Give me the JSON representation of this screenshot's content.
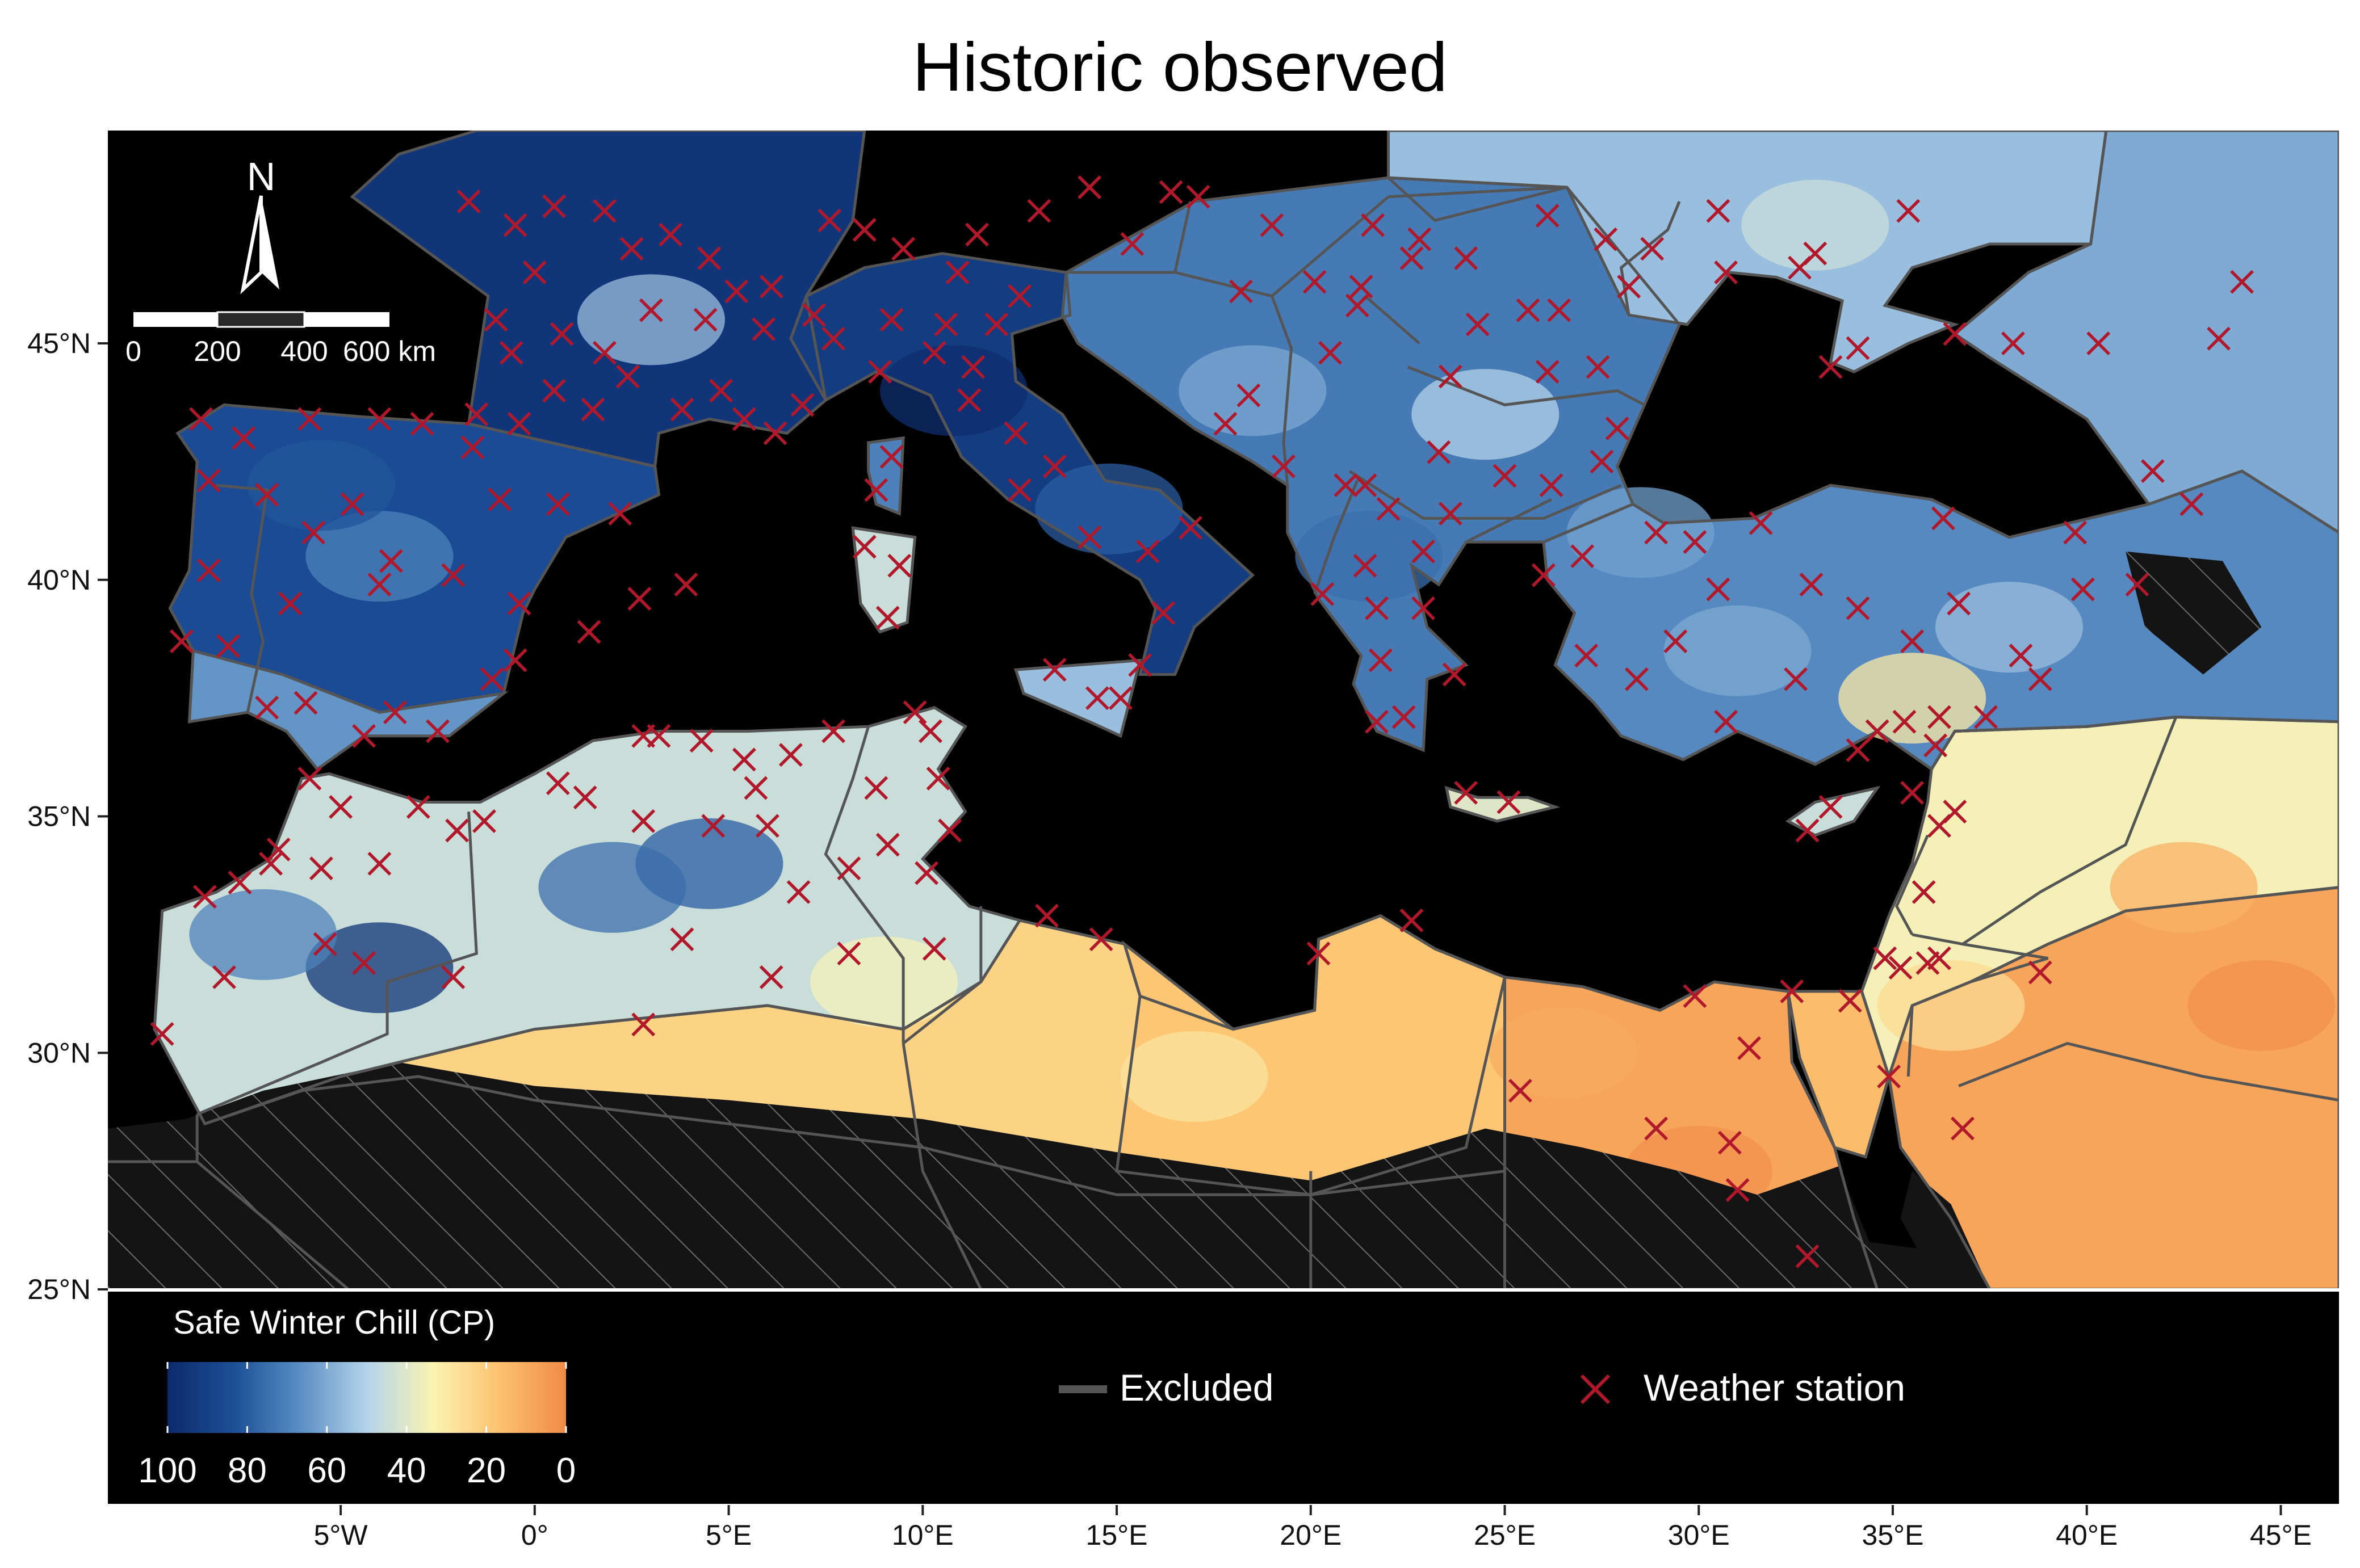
{
  "title": "Historic observed",
  "lat_axis": [
    {
      "value": 25,
      "label": "25°N"
    },
    {
      "value": 30,
      "label": "30°N"
    },
    {
      "value": 35,
      "label": "35°N"
    },
    {
      "value": 40,
      "label": "40°N"
    },
    {
      "value": 45,
      "label": "45°N"
    }
  ],
  "lon_axis": [
    {
      "value": -5,
      "label": "5°W"
    },
    {
      "value": 0,
      "label": "0°"
    },
    {
      "value": 5,
      "label": "5°E"
    },
    {
      "value": 10,
      "label": "10°E"
    },
    {
      "value": 15,
      "label": "15°E"
    },
    {
      "value": 20,
      "label": "20°E"
    },
    {
      "value": 25,
      "label": "25°E"
    },
    {
      "value": 30,
      "label": "30°E"
    },
    {
      "value": 35,
      "label": "35°E"
    },
    {
      "value": 40,
      "label": "40°E"
    },
    {
      "value": 45,
      "label": "45°E"
    }
  ],
  "extent": {
    "lon_min": -11,
    "lon_max": 46.5,
    "lat_min": 25,
    "lat_max": 49.5
  },
  "north_arrow": {
    "label": "N"
  },
  "scale_bar": {
    "labels": [
      "0",
      "200",
      "400",
      "600 km"
    ]
  },
  "legend": {
    "colorbar_title": "Safe Winter Chill (CP)",
    "colorbar_labels": [
      "100",
      "80",
      "60",
      "40",
      "20",
      "0"
    ],
    "excluded_label": "Excluded",
    "station_label": "Weather station"
  },
  "colors": {
    "sea": "#000000",
    "excluded": "#141414",
    "border": "#555555",
    "station": "#b2182b",
    "ramp": [
      "#0b2a6b",
      "#1d4f98",
      "#5a8ec3",
      "#b4d3ea",
      "#fbf3b2",
      "#fcc270",
      "#f08a48"
    ]
  },
  "chill_regions": [
    {
      "name": "france",
      "chill": 95
    },
    {
      "name": "iberia",
      "chill": 85
    },
    {
      "name": "iberia-south",
      "chill": 65
    },
    {
      "name": "italy",
      "chill": 92
    },
    {
      "name": "balkans",
      "chill": 72
    },
    {
      "name": "ukraine",
      "chill": 55
    },
    {
      "name": "anatolia",
      "chill": 68
    },
    {
      "name": "levant",
      "chill": 35
    },
    {
      "name": "arabia",
      "chill": 8
    },
    {
      "name": "maghreb-north",
      "chill": 45
    },
    {
      "name": "atlas",
      "chill": 88
    },
    {
      "name": "sahara",
      "chill": 22
    },
    {
      "name": "libya",
      "chill": 18
    },
    {
      "name": "egypt",
      "chill": 8
    },
    {
      "name": "sinai",
      "chill": 15
    }
  ],
  "stations": [
    [
      -1.7,
      48.0
    ],
    [
      -0.5,
      47.5
    ],
    [
      0.5,
      47.9
    ],
    [
      1.8,
      47.8
    ],
    [
      2.5,
      47.0
    ],
    [
      3.5,
      47.3
    ],
    [
      4.5,
      46.8
    ],
    [
      5.2,
      46.1
    ],
    [
      0.0,
      46.5
    ],
    [
      -1.0,
      45.5
    ],
    [
      0.7,
      45.2
    ],
    [
      1.8,
      44.8
    ],
    [
      3.0,
      45.7
    ],
    [
      4.4,
      45.5
    ],
    [
      5.9,
      45.3
    ],
    [
      -0.6,
      44.8
    ],
    [
      0.5,
      44.0
    ],
    [
      1.5,
      43.6
    ],
    [
      2.4,
      44.3
    ],
    [
      3.8,
      43.6
    ],
    [
      5.4,
      43.4
    ],
    [
      6.2,
      43.1
    ],
    [
      -1.5,
      43.5
    ],
    [
      -0.4,
      43.3
    ],
    [
      4.8,
      44.0
    ],
    [
      6.9,
      43.7
    ],
    [
      7.2,
      45.6
    ],
    [
      6.1,
      46.2
    ],
    [
      -8.6,
      43.4
    ],
    [
      -8.4,
      42.1
    ],
    [
      -7.5,
      43.0
    ],
    [
      -5.8,
      43.4
    ],
    [
      -4.0,
      43.4
    ],
    [
      -2.9,
      43.3
    ],
    [
      -1.6,
      42.8
    ],
    [
      -0.9,
      41.7
    ],
    [
      0.6,
      41.6
    ],
    [
      2.2,
      41.4
    ],
    [
      -3.7,
      40.4
    ],
    [
      -4.7,
      41.6
    ],
    [
      -5.7,
      41.0
    ],
    [
      -6.9,
      41.8
    ],
    [
      -8.4,
      40.2
    ],
    [
      -9.1,
      38.7
    ],
    [
      -7.9,
      38.6
    ],
    [
      -6.3,
      39.5
    ],
    [
      -4.0,
      39.9
    ],
    [
      -2.1,
      40.1
    ],
    [
      -0.4,
      39.5
    ],
    [
      -1.1,
      37.9
    ],
    [
      -3.6,
      37.2
    ],
    [
      -5.9,
      37.4
    ],
    [
      -6.9,
      37.3
    ],
    [
      -4.4,
      36.7
    ],
    [
      -2.5,
      36.8
    ],
    [
      -0.5,
      38.3
    ],
    [
      1.4,
      38.9
    ],
    [
      2.7,
      39.6
    ],
    [
      3.9,
      39.9
    ],
    [
      7.7,
      45.1
    ],
    [
      9.2,
      45.5
    ],
    [
      10.6,
      45.4
    ],
    [
      11.9,
      45.4
    ],
    [
      12.5,
      46.0
    ],
    [
      11.3,
      44.5
    ],
    [
      10.3,
      44.8
    ],
    [
      8.9,
      44.4
    ],
    [
      11.2,
      43.8
    ],
    [
      12.4,
      43.1
    ],
    [
      13.4,
      42.4
    ],
    [
      12.5,
      41.9
    ],
    [
      14.3,
      40.9
    ],
    [
      15.8,
      40.6
    ],
    [
      16.9,
      41.1
    ],
    [
      16.2,
      39.3
    ],
    [
      15.6,
      38.2
    ],
    [
      13.4,
      38.1
    ],
    [
      14.5,
      37.5
    ],
    [
      15.1,
      37.5
    ],
    [
      9.1,
      39.2
    ],
    [
      8.5,
      40.7
    ],
    [
      9.4,
      40.3
    ],
    [
      9.2,
      42.6
    ],
    [
      8.8,
      41.9
    ],
    [
      10.9,
      46.5
    ],
    [
      8.5,
      47.4
    ],
    [
      7.6,
      47.6
    ],
    [
      9.5,
      47.0
    ],
    [
      11.4,
      47.3
    ],
    [
      13.0,
      47.8
    ],
    [
      14.3,
      48.3
    ],
    [
      16.4,
      48.2
    ],
    [
      15.4,
      47.1
    ],
    [
      17.1,
      48.1
    ],
    [
      19.0,
      47.5
    ],
    [
      21.6,
      47.5
    ],
    [
      18.2,
      46.1
    ],
    [
      20.1,
      46.3
    ],
    [
      21.3,
      46.2
    ],
    [
      22.6,
      46.8
    ],
    [
      24.0,
      46.8
    ],
    [
      26.1,
      47.7
    ],
    [
      27.6,
      47.2
    ],
    [
      28.8,
      47.0
    ],
    [
      26.1,
      44.4
    ],
    [
      23.6,
      44.3
    ],
    [
      25.6,
      45.7
    ],
    [
      24.3,
      45.4
    ],
    [
      21.2,
      45.8
    ],
    [
      20.5,
      44.8
    ],
    [
      18.4,
      43.9
    ],
    [
      17.8,
      43.3
    ],
    [
      19.3,
      42.4
    ],
    [
      20.9,
      42.0
    ],
    [
      21.4,
      42.0
    ],
    [
      22.0,
      41.5
    ],
    [
      23.3,
      42.7
    ],
    [
      25.0,
      42.2
    ],
    [
      26.2,
      42.0
    ],
    [
      27.9,
      43.2
    ],
    [
      27.5,
      42.5
    ],
    [
      23.6,
      41.4
    ],
    [
      22.9,
      40.6
    ],
    [
      21.4,
      40.3
    ],
    [
      20.3,
      39.7
    ],
    [
      21.7,
      39.4
    ],
    [
      22.9,
      39.4
    ],
    [
      23.7,
      38.0
    ],
    [
      21.8,
      38.3
    ],
    [
      22.4,
      37.1
    ],
    [
      21.7,
      37.0
    ],
    [
      25.1,
      35.3
    ],
    [
      24.0,
      35.5
    ],
    [
      26.0,
      40.1
    ],
    [
      27.0,
      40.5
    ],
    [
      28.9,
      41.0
    ],
    [
      29.9,
      40.8
    ],
    [
      31.6,
      41.2
    ],
    [
      32.9,
      39.9
    ],
    [
      30.5,
      39.8
    ],
    [
      29.4,
      38.7
    ],
    [
      27.1,
      38.4
    ],
    [
      28.4,
      37.9
    ],
    [
      30.7,
      37.0
    ],
    [
      32.5,
      37.9
    ],
    [
      35.3,
      37.0
    ],
    [
      34.6,
      36.8
    ],
    [
      36.2,
      37.1
    ],
    [
      37.4,
      37.1
    ],
    [
      38.8,
      37.9
    ],
    [
      39.9,
      39.8
    ],
    [
      41.3,
      39.9
    ],
    [
      38.3,
      38.4
    ],
    [
      36.7,
      39.5
    ],
    [
      35.5,
      38.7
    ],
    [
      34.1,
      39.4
    ],
    [
      36.3,
      41.3
    ],
    [
      39.7,
      41.0
    ],
    [
      42.7,
      41.6
    ],
    [
      41.7,
      42.3
    ],
    [
      43.4,
      45.1
    ],
    [
      44.0,
      46.3
    ],
    [
      40.3,
      45.0
    ],
    [
      38.1,
      45.0
    ],
    [
      36.6,
      45.2
    ],
    [
      34.1,
      44.9
    ],
    [
      33.4,
      44.5
    ],
    [
      30.7,
      46.5
    ],
    [
      32.6,
      46.6
    ],
    [
      35.4,
      47.8
    ],
    [
      30.5,
      47.8
    ],
    [
      33.0,
      46.9
    ],
    [
      28.2,
      46.2
    ],
    [
      27.4,
      44.5
    ],
    [
      26.4,
      45.7
    ],
    [
      22.8,
      47.2
    ],
    [
      -6.8,
      34.0
    ],
    [
      -5.5,
      33.9
    ],
    [
      -4.0,
      34.0
    ],
    [
      -5.0,
      35.2
    ],
    [
      -5.8,
      35.8
    ],
    [
      -3.0,
      35.2
    ],
    [
      -2.0,
      34.7
    ],
    [
      -1.3,
      34.9
    ],
    [
      -7.6,
      33.6
    ],
    [
      -8.0,
      31.6
    ],
    [
      -5.4,
      32.3
    ],
    [
      -4.4,
      31.9
    ],
    [
      -2.1,
      31.6
    ],
    [
      -8.5,
      33.3
    ],
    [
      -6.6,
      34.3
    ],
    [
      -9.6,
      30.4
    ],
    [
      0.6,
      35.7
    ],
    [
      2.8,
      36.7
    ],
    [
      3.2,
      36.7
    ],
    [
      5.4,
      36.2
    ],
    [
      6.6,
      36.3
    ],
    [
      7.7,
      36.8
    ],
    [
      5.7,
      35.6
    ],
    [
      4.3,
      36.6
    ],
    [
      1.3,
      35.4
    ],
    [
      2.8,
      34.9
    ],
    [
      4.6,
      34.8
    ],
    [
      6.0,
      34.8
    ],
    [
      6.8,
      33.4
    ],
    [
      8.1,
      33.9
    ],
    [
      9.1,
      34.4
    ],
    [
      10.2,
      36.8
    ],
    [
      10.4,
      35.8
    ],
    [
      10.7,
      34.7
    ],
    [
      10.1,
      33.8
    ],
    [
      9.8,
      37.2
    ],
    [
      8.8,
      35.6
    ],
    [
      8.1,
      32.1
    ],
    [
      3.8,
      32.4
    ],
    [
      2.8,
      30.6
    ],
    [
      6.1,
      31.6
    ],
    [
      10.3,
      32.2
    ],
    [
      20.2,
      32.1
    ],
    [
      13.2,
      32.9
    ],
    [
      14.6,
      32.4
    ],
    [
      22.6,
      32.8
    ],
    [
      25.4,
      29.2
    ],
    [
      28.9,
      28.4
    ],
    [
      29.9,
      31.2
    ],
    [
      31.3,
      30.1
    ],
    [
      30.8,
      28.1
    ],
    [
      31.0,
      27.1
    ],
    [
      32.4,
      31.3
    ],
    [
      32.8,
      25.7
    ],
    [
      33.9,
      31.1
    ],
    [
      34.8,
      32.0
    ],
    [
      35.2,
      31.8
    ],
    [
      36.2,
      32.0
    ],
    [
      35.8,
      33.4
    ],
    [
      36.6,
      35.1
    ],
    [
      35.5,
      35.5
    ],
    [
      36.2,
      34.8
    ],
    [
      32.8,
      34.7
    ],
    [
      33.4,
      35.2
    ],
    [
      34.9,
      29.5
    ],
    [
      35.9,
      31.9
    ],
    [
      36.8,
      28.4
    ],
    [
      38.8,
      31.7
    ],
    [
      36.1,
      36.5
    ],
    [
      34.1,
      36.4
    ]
  ]
}
